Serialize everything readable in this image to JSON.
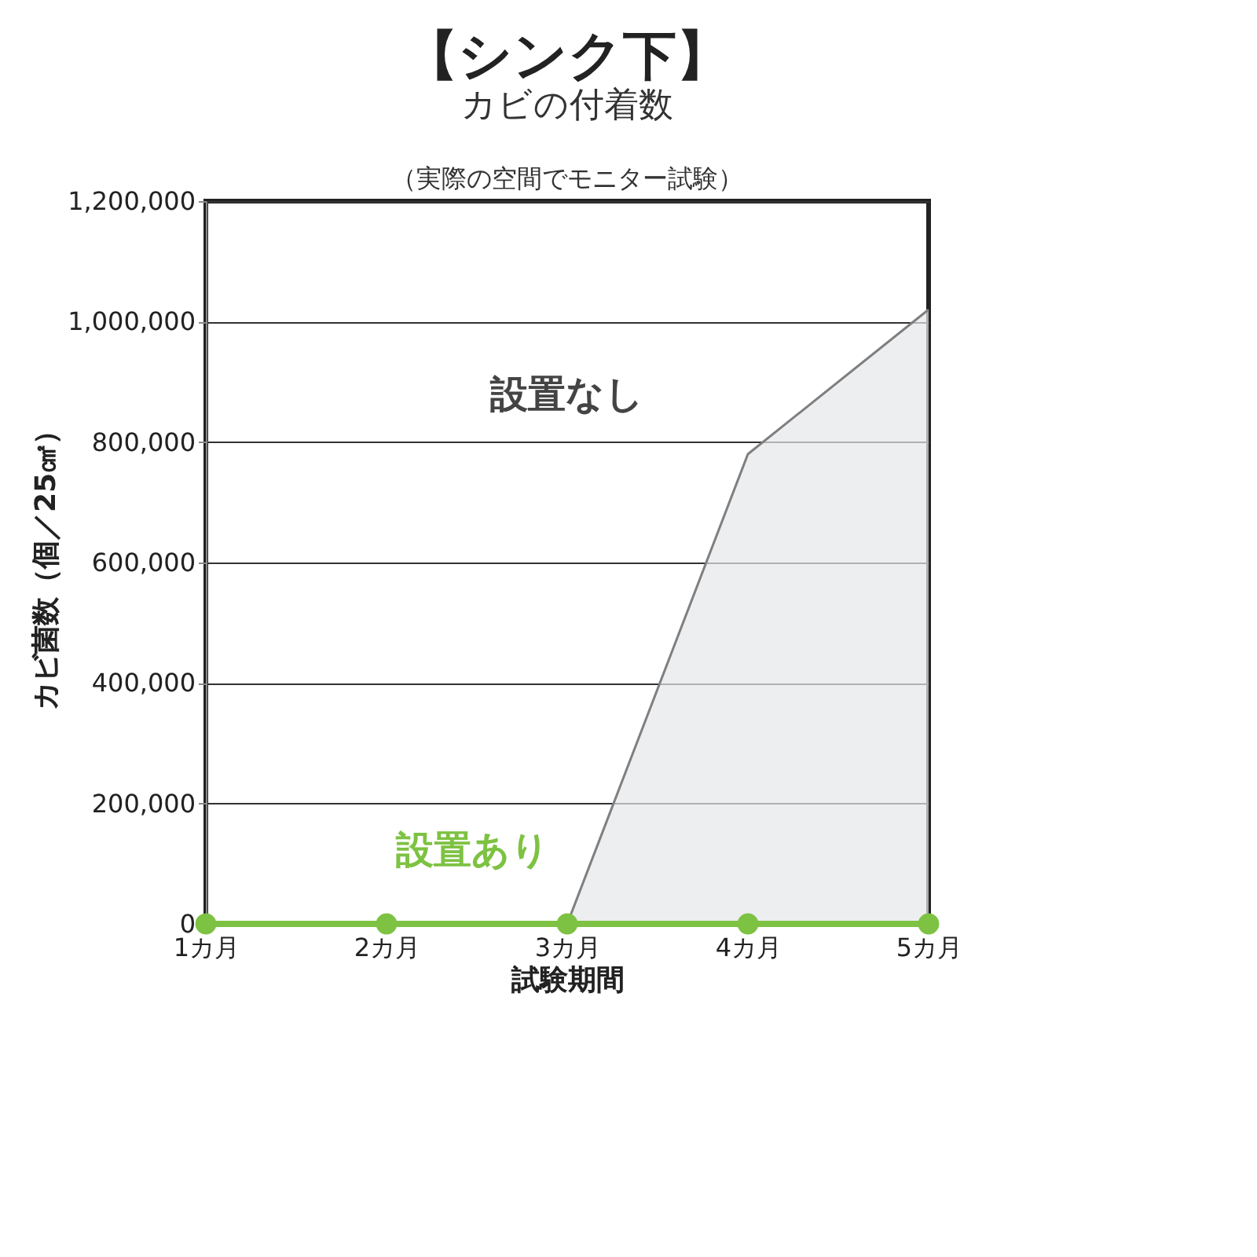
{
  "chart_data": {
    "type": "line",
    "title": "【シンク下】",
    "subtitle": "カビの付着数",
    "annotations": [
      "（実際の空間でモニター試験）"
    ],
    "xlabel": "試験期間",
    "ylabel": "カビ菌数（個／25㎠）",
    "categories": [
      "1カ月",
      "2カ月",
      "3カ月",
      "4カ月",
      "5カ月"
    ],
    "series": [
      {
        "name": "設置なし",
        "type": "area",
        "color": "#7f7f7f",
        "values": [
          null,
          null,
          0,
          780000,
          1020000
        ]
      },
      {
        "name": "設置あり",
        "color": "#7dc242",
        "values": [
          0,
          0,
          0,
          0,
          0
        ],
        "marker": "circle"
      }
    ],
    "ylim": [
      0,
      1200000
    ],
    "yticks": [
      0,
      {
        "value": 200000,
        "label": "200,000"
      },
      {
        "value": 400000,
        "label": "400,000"
      },
      {
        "value": 600000,
        "label": "600,000"
      },
      {
        "value": 800000,
        "label": "800,000"
      },
      {
        "value": 1000000,
        "label": "1,000,000"
      },
      {
        "value": 1200000,
        "label": "1,200,000"
      }
    ],
    "grid": "y"
  }
}
